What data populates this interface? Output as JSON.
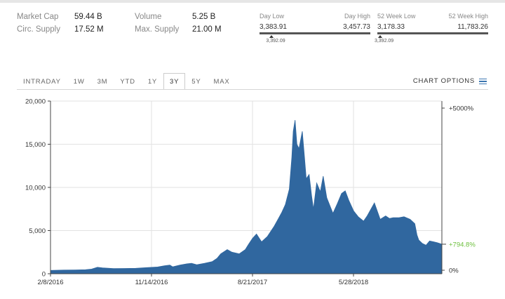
{
  "stats": {
    "col1": [
      {
        "label": "Market Cap",
        "value": "59.44 B"
      },
      {
        "label": "Circ. Supply",
        "value": "17.52 M"
      }
    ],
    "col2": [
      {
        "label": "Volume",
        "value": "5.25 B"
      },
      {
        "label": "Max. Supply",
        "value": "21.00 M"
      }
    ]
  },
  "day_range": {
    "low_label": "Day Low",
    "high_label": "Day High",
    "low": "3,383.91",
    "high": "3,457.73",
    "current": "3,392.09",
    "position": 0.11
  },
  "week52_range": {
    "low_label": "52 Week Low",
    "high_label": "52 Week High",
    "low": "3,178.33",
    "high": "11,783.26",
    "current": "3,392.09",
    "position": 0.025
  },
  "tabs": [
    "INTRADAY",
    "1W",
    "3M",
    "YTD",
    "1Y",
    "3Y",
    "5Y",
    "MAX"
  ],
  "active_tab": "3Y",
  "chart_options_label": "CHART OPTIONS",
  "colors": {
    "fill": "#30679f",
    "current_label": "#6cbf3c",
    "grid": "#e2e2e2"
  },
  "chart_data": {
    "type": "area",
    "y_ticks": [
      "0",
      "5,000",
      "10,000",
      "15,000",
      "20,000"
    ],
    "y_tick_values": [
      0,
      5000,
      10000,
      15000,
      20000
    ],
    "ylim": [
      0,
      20000
    ],
    "x_ticks": [
      "2/8/2016",
      "11/14/2016",
      "8/21/2017",
      "5/28/2018"
    ],
    "x_tick_dates": [
      "2016-02-08",
      "2016-11-14",
      "2017-08-21",
      "2018-05-28"
    ],
    "xlim": [
      "2016-02-08",
      "2019-01-28"
    ],
    "right_axis_labels": [
      "+5000%",
      "0%"
    ],
    "current_change": "+794.8%",
    "grid": true,
    "series": [
      {
        "dates": [
          "2016-02-08",
          "2016-03-15",
          "2016-04-15",
          "2016-05-15",
          "2016-06-01",
          "2016-06-17",
          "2016-07-01",
          "2016-08-01",
          "2016-09-01",
          "2016-10-01",
          "2016-11-01",
          "2016-11-14",
          "2016-12-01",
          "2016-12-20",
          "2017-01-04",
          "2017-01-12",
          "2017-02-01",
          "2017-02-20",
          "2017-03-05",
          "2017-03-20",
          "2017-04-10",
          "2017-05-01",
          "2017-05-15",
          "2017-05-25",
          "2017-06-05",
          "2017-06-12",
          "2017-06-25",
          "2017-07-15",
          "2017-08-01",
          "2017-08-10",
          "2017-08-21",
          "2017-09-01",
          "2017-09-15",
          "2017-10-01",
          "2017-10-20",
          "2017-11-01",
          "2017-11-10",
          "2017-11-20",
          "2017-12-01",
          "2017-12-08",
          "2017-12-12",
          "2017-12-17",
          "2017-12-22",
          "2017-12-28",
          "2018-01-06",
          "2018-01-12",
          "2018-01-17",
          "2018-01-25",
          "2018-02-01",
          "2018-02-06",
          "2018-02-15",
          "2018-02-25",
          "2018-03-05",
          "2018-03-15",
          "2018-04-01",
          "2018-04-12",
          "2018-04-25",
          "2018-05-05",
          "2018-05-15",
          "2018-05-28",
          "2018-06-10",
          "2018-06-25",
          "2018-07-05",
          "2018-07-25",
          "2018-08-10",
          "2018-08-25",
          "2018-09-05",
          "2018-09-15",
          "2018-10-01",
          "2018-10-15",
          "2018-11-01",
          "2018-11-14",
          "2018-11-20",
          "2018-11-25",
          "2018-12-05",
          "2018-12-15",
          "2018-12-25",
          "2019-01-05",
          "2019-01-15",
          "2019-01-28"
        ],
        "values": [
          380,
          420,
          440,
          460,
          540,
          750,
          680,
          590,
          610,
          630,
          710,
          740,
          780,
          920,
          1000,
          800,
          1000,
          1150,
          1200,
          1040,
          1200,
          1400,
          1800,
          2300,
          2600,
          2800,
          2500,
          2300,
          2800,
          3400,
          4100,
          4600,
          3700,
          4300,
          5500,
          6400,
          7100,
          8000,
          9800,
          13500,
          16500,
          17800,
          15000,
          14500,
          16500,
          13500,
          11000,
          11500,
          9000,
          7500,
          10500,
          9500,
          11300,
          8800,
          7000,
          8000,
          9300,
          9600,
          8500,
          7300,
          6600,
          6100,
          6700,
          8200,
          6300,
          6700,
          6400,
          6500,
          6500,
          6600,
          6300,
          5800,
          4500,
          3900,
          3500,
          3300,
          3800,
          3700,
          3600,
          3420
        ]
      }
    ]
  }
}
